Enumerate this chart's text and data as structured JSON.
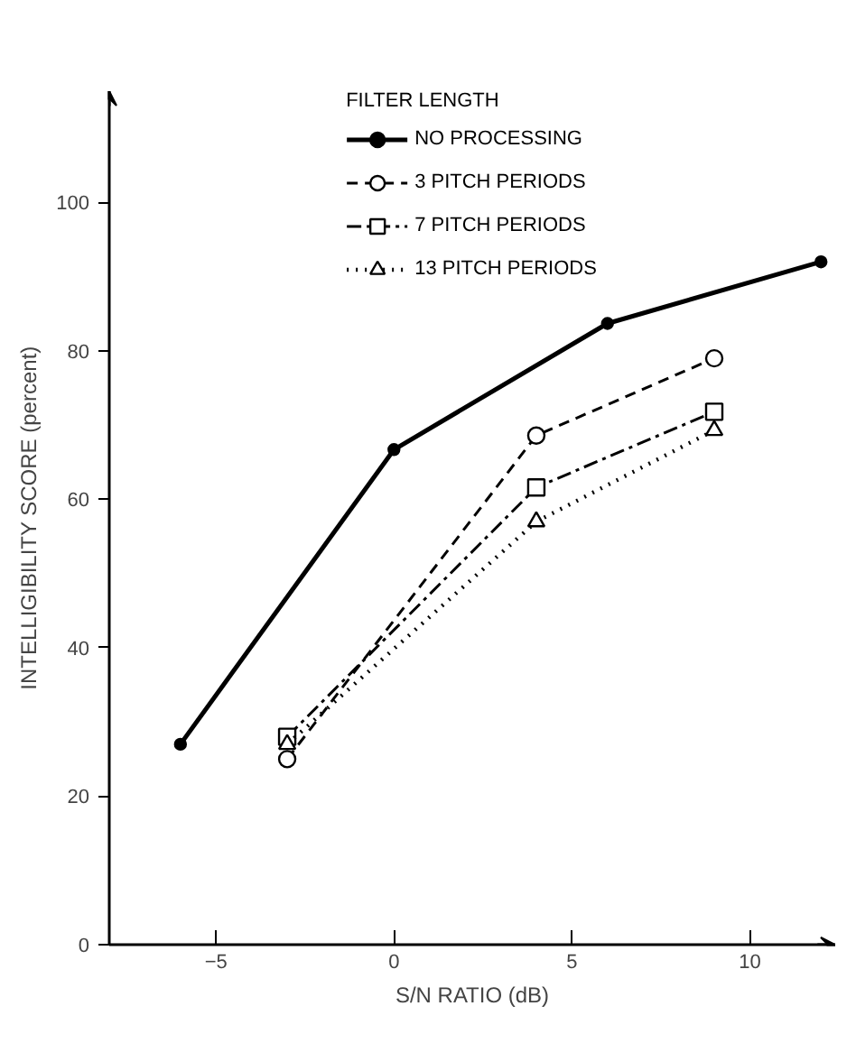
{
  "chart_data": {
    "type": "line",
    "xlabel": "S/N RATIO (dB)",
    "ylabel": "INTELLIGIBILITY SCORE (percent)",
    "legend_title": "FILTER LENGTH",
    "xlim": [
      -8,
      12.4
    ],
    "ylim": [
      0,
      115
    ],
    "xticks": [
      -5,
      0,
      5,
      10
    ],
    "yticks": [
      0,
      20,
      40,
      60,
      80,
      100
    ],
    "grid": false,
    "legend": "top",
    "series": [
      {
        "name": "NO PROCESSING",
        "color": "#000000",
        "x": [
          -6,
          0,
          6,
          12
        ],
        "values": [
          27,
          66.7,
          83.7,
          92
        ],
        "marker": "circle",
        "line_style": "solid"
      },
      {
        "name": "3 PITCH PERIODS",
        "color": "#000000",
        "x": [
          -3,
          4,
          9
        ],
        "values": [
          25,
          68.6,
          79
        ],
        "marker": "circle",
        "line_style": "dashed"
      },
      {
        "name": "7 PITCH PERIODS",
        "color": "#000000",
        "x": [
          -3,
          4,
          9
        ],
        "values": [
          28,
          61.6,
          71.8
        ],
        "marker": "square",
        "line_style": "dashdot"
      },
      {
        "name": "13 PITCH PERIODS",
        "color": "#000000",
        "x": [
          -3,
          4,
          9
        ],
        "values": [
          27,
          57,
          69.3
        ],
        "marker": "triangle",
        "line_style": "dotted"
      }
    ]
  }
}
